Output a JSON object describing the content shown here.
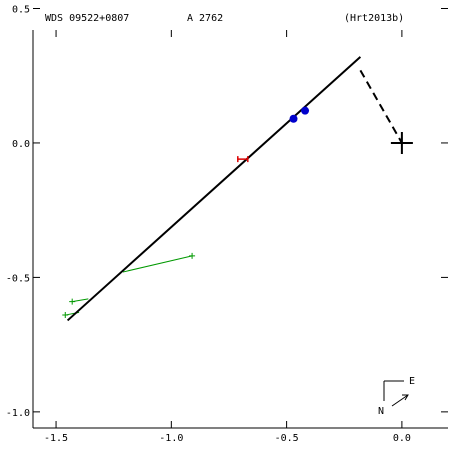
{
  "header": {
    "wds": "WDS 09522+0807",
    "discoverer": "A  2762",
    "reference": "(Hrt2013b)"
  },
  "compass": {
    "east": "E",
    "north": "N"
  },
  "colors": {
    "orbit": "#000000",
    "observation_a": "#0000cc",
    "observation_b": "#dd0000",
    "residual_track": "#009900"
  },
  "chart_data": {
    "type": "scatter",
    "xlim": [
      -1.6,
      0.2
    ],
    "ylim": [
      -1.06,
      0.42
    ],
    "x_ticks": [
      -1.5,
      -1.0,
      -0.5,
      0.0
    ],
    "x_tick_labels": [
      "-1.5",
      "-1.0",
      "-0.5",
      "0.0"
    ],
    "y_ticks": [
      0.5,
      0.0,
      -0.5,
      -1.0
    ],
    "y_tick_labels": [
      "0.5",
      "0.0",
      "-0.5",
      "-1.0"
    ],
    "orbit_line": {
      "x": [
        -1.45,
        -0.18
      ],
      "y": [
        -0.66,
        0.32
      ]
    },
    "node_line": {
      "x": [
        -0.18,
        0.0
      ],
      "y": [
        0.27,
        0.0
      ]
    },
    "primary": {
      "x": 0.0,
      "y": 0.0
    },
    "observations_blue": {
      "x": [
        -0.47,
        -0.42
      ],
      "y": [
        0.09,
        0.12
      ]
    },
    "observations_red": {
      "x": [
        -0.69
      ],
      "y": [
        -0.06
      ]
    },
    "green_tracks": [
      {
        "x": [
          -0.91,
          -1.21
        ],
        "y": [
          -0.42,
          -0.48
        ]
      },
      {
        "x": [
          -1.43,
          -1.36
        ],
        "y": [
          -0.59,
          -0.58
        ]
      },
      {
        "x": [
          -1.46,
          -1.4
        ],
        "y": [
          -0.64,
          -0.63
        ]
      }
    ],
    "green_points": {
      "x": [
        -0.91,
        -1.43,
        -1.46
      ],
      "y": [
        -0.42,
        -0.59,
        -0.64
      ]
    }
  }
}
